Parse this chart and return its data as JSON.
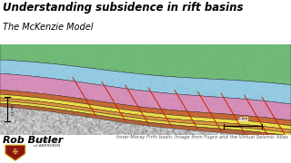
{
  "title": "Understanding subsidence in rift basins",
  "subtitle": "The McKenzie Model",
  "presenter": "Rob Butler",
  "caption": "Inner Moray Firth basin. Image from Fugro and the Virtual Seismic Atlas",
  "scalebar_label": "5 km",
  "background_color": "#ffffff",
  "title_color": "#000000",
  "title_fontsize": 8.5,
  "subtitle_fontsize": 7,
  "presenter_fontsize": 8,
  "caption_fontsize": 3.8,
  "colors": {
    "green": "#6aba72",
    "blue": "#8ecde8",
    "pink": "#d988b8",
    "orange_dark": "#c86028",
    "yellow": "#f0e040",
    "orange_mid": "#e09030",
    "orange2": "#d07030",
    "brown": "#b05828",
    "fault": "#cc2200",
    "seismic_bg": "#b8b8b8"
  }
}
